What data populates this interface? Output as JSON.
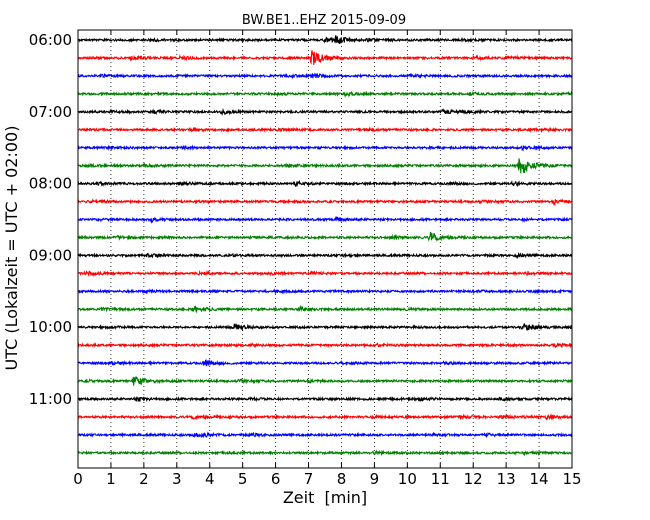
{
  "chart_data": {
    "type": "line",
    "title": "BW.BE1..EHZ 2015-09-09",
    "xlabel": "Zeit  [min]",
    "ylabel": "UTC (Lokalzeit = UTC + 02:00)",
    "xlim": [
      0,
      15
    ],
    "x_ticks": [
      "0",
      "1",
      "2",
      "3",
      "4",
      "5",
      "6",
      "7",
      "8",
      "9",
      "10",
      "11",
      "12",
      "13",
      "14",
      "15"
    ],
    "y_ticks": [
      "06:00",
      "07:00",
      "08:00",
      "09:00",
      "10:00",
      "11:00"
    ],
    "grid": "vertical dotted",
    "trace_colors": [
      "#000000",
      "#ff0000",
      "#0000ff",
      "#008000"
    ],
    "traces": [
      {
        "start": "06:00",
        "events": [
          {
            "t": 7.75,
            "amp": 1.0
          },
          {
            "t": 7.5,
            "amp": 0.35
          },
          {
            "t": 8.8,
            "amp": 0.25
          },
          {
            "t": 2.3,
            "amp": 0.15
          },
          {
            "t": 11.6,
            "amp": 0.15
          }
        ]
      },
      {
        "start": "06:15",
        "events": [
          {
            "t": 7.1,
            "amp": 1.6
          },
          {
            "t": 1.6,
            "amp": 0.3
          },
          {
            "t": 3.1,
            "amp": 0.3
          },
          {
            "t": 12.0,
            "amp": 0.3
          },
          {
            "t": 13.0,
            "amp": 0.3
          }
        ]
      },
      {
        "start": "06:30",
        "events": [
          {
            "t": 7.1,
            "amp": 0.35
          },
          {
            "t": 6.3,
            "amp": 0.25
          },
          {
            "t": 10.1,
            "amp": 0.2
          },
          {
            "t": 0.7,
            "amp": 0.15
          }
        ]
      },
      {
        "start": "06:45",
        "events": [
          {
            "t": 8.1,
            "amp": 0.25
          },
          {
            "t": 11.9,
            "amp": 0.2
          },
          {
            "t": 14.9,
            "amp": 0.2
          },
          {
            "t": 6.0,
            "amp": 0.15
          }
        ]
      },
      {
        "start": "07:00",
        "events": [
          {
            "t": 4.35,
            "amp": 0.35
          },
          {
            "t": 11.05,
            "amp": 0.4
          },
          {
            "t": 2.3,
            "amp": 0.25
          },
          {
            "t": 11.6,
            "amp": 0.25
          },
          {
            "t": 1.0,
            "amp": 0.15
          }
        ]
      },
      {
        "start": "07:15",
        "events": [
          {
            "t": 3.5,
            "amp": 0.3
          },
          {
            "t": 6.1,
            "amp": 0.15
          },
          {
            "t": 8.8,
            "amp": 0.15
          },
          {
            "t": 13.8,
            "amp": 0.2
          }
        ]
      },
      {
        "start": "07:30",
        "events": [
          {
            "t": 13.5,
            "amp": 0.3
          },
          {
            "t": 10.7,
            "amp": 0.2
          },
          {
            "t": 3.2,
            "amp": 0.15
          },
          {
            "t": 0.9,
            "amp": 0.15
          }
        ]
      },
      {
        "start": "07:45",
        "events": [
          {
            "t": 13.4,
            "amp": 2.3
          },
          {
            "t": 2.0,
            "amp": 0.2
          },
          {
            "t": 6.4,
            "amp": 0.2
          },
          {
            "t": 0.35,
            "amp": 0.15
          }
        ]
      },
      {
        "start": "08:00",
        "events": [
          {
            "t": 3.1,
            "amp": 0.35
          },
          {
            "t": 6.6,
            "amp": 0.35
          },
          {
            "t": 13.2,
            "amp": 0.3
          },
          {
            "t": 0.6,
            "amp": 0.25
          },
          {
            "t": 11.3,
            "amp": 0.2
          }
        ]
      },
      {
        "start": "08:15",
        "events": [
          {
            "t": 14.45,
            "amp": 0.35
          },
          {
            "t": 0.4,
            "amp": 0.2
          },
          {
            "t": 12.2,
            "amp": 0.15
          }
        ]
      },
      {
        "start": "08:30",
        "events": [
          {
            "t": 2.2,
            "amp": 0.45
          },
          {
            "t": 7.85,
            "amp": 0.3
          },
          {
            "t": 0.6,
            "amp": 0.15
          },
          {
            "t": 13.5,
            "amp": 0.15
          }
        ]
      },
      {
        "start": "08:45",
        "events": [
          {
            "t": 10.7,
            "amp": 1.0
          },
          {
            "t": 9.5,
            "amp": 0.2
          },
          {
            "t": 1.2,
            "amp": 0.15
          }
        ]
      },
      {
        "start": "09:00",
        "events": [
          {
            "t": 2.1,
            "amp": 0.25
          },
          {
            "t": 8.0,
            "amp": 0.2
          },
          {
            "t": 13.3,
            "amp": 0.25
          },
          {
            "t": 4.7,
            "amp": 0.15
          }
        ]
      },
      {
        "start": "09:15",
        "events": [
          {
            "t": 0.25,
            "amp": 0.35
          },
          {
            "t": 3.7,
            "amp": 0.3
          },
          {
            "t": 5.8,
            "amp": 0.2
          },
          {
            "t": 13.6,
            "amp": 0.3
          },
          {
            "t": 7.1,
            "amp": 0.15
          }
        ]
      },
      {
        "start": "09:30",
        "events": [
          {
            "t": 6.0,
            "amp": 0.2
          },
          {
            "t": 12.2,
            "amp": 0.15
          },
          {
            "t": 2.0,
            "amp": 0.15
          }
        ]
      },
      {
        "start": "09:45",
        "events": [
          {
            "t": 3.5,
            "amp": 0.65
          },
          {
            "t": 6.7,
            "amp": 0.35
          },
          {
            "t": 0.7,
            "amp": 0.2
          },
          {
            "t": 10.0,
            "amp": 0.15
          }
        ]
      },
      {
        "start": "10:00",
        "events": [
          {
            "t": 4.75,
            "amp": 0.6
          },
          {
            "t": 13.5,
            "amp": 0.9
          },
          {
            "t": 14.9,
            "amp": 0.25
          },
          {
            "t": 1.0,
            "amp": 0.15
          }
        ]
      },
      {
        "start": "10:15",
        "events": [
          {
            "t": 14.4,
            "amp": 0.35
          },
          {
            "t": 5.3,
            "amp": 0.15
          },
          {
            "t": 9.1,
            "amp": 0.15
          }
        ]
      },
      {
        "start": "10:30",
        "events": [
          {
            "t": 3.85,
            "amp": 0.65
          },
          {
            "t": 1.0,
            "amp": 0.25
          },
          {
            "t": 11.1,
            "amp": 0.15
          },
          {
            "t": 8.0,
            "amp": 0.15
          }
        ]
      },
      {
        "start": "10:45",
        "events": [
          {
            "t": 1.7,
            "amp": 1.1
          },
          {
            "t": 4.9,
            "amp": 0.2
          },
          {
            "t": 7.0,
            "amp": 0.15
          },
          {
            "t": 0.3,
            "amp": 0.15
          }
        ]
      },
      {
        "start": "11:00",
        "events": [
          {
            "t": 1.75,
            "amp": 0.35
          },
          {
            "t": 10.4,
            "amp": 0.2
          },
          {
            "t": 5.2,
            "amp": 0.15
          },
          {
            "t": 12.8,
            "amp": 0.15
          }
        ]
      },
      {
        "start": "11:15",
        "events": [
          {
            "t": 3.5,
            "amp": 0.35
          },
          {
            "t": 11.55,
            "amp": 0.3
          },
          {
            "t": 12.85,
            "amp": 0.3
          },
          {
            "t": 14.2,
            "amp": 0.3
          },
          {
            "t": 8.9,
            "amp": 0.15
          }
        ]
      },
      {
        "start": "11:30",
        "events": [
          {
            "t": 3.5,
            "amp": 0.3
          },
          {
            "t": 3.8,
            "amp": 0.25
          },
          {
            "t": 5.3,
            "amp": 0.2
          },
          {
            "t": 10.8,
            "amp": 0.2
          },
          {
            "t": 12.4,
            "amp": 0.2
          }
        ]
      },
      {
        "start": "11:45",
        "events": [
          {
            "t": 9.0,
            "amp": 0.2
          },
          {
            "t": 13.5,
            "amp": 0.15
          },
          {
            "t": 4.5,
            "amp": 0.15
          }
        ]
      }
    ]
  }
}
